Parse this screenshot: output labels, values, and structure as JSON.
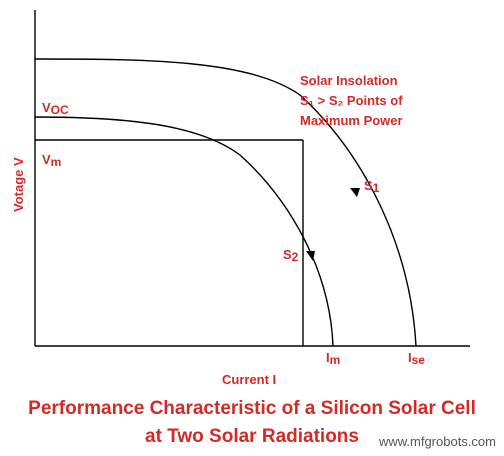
{
  "axes": {
    "y_label": "Votage V",
    "x_label": "Current I"
  },
  "markers": {
    "voc": {
      "main": "V",
      "sub": "OC"
    },
    "vm": {
      "main": "V",
      "sub": "m"
    },
    "im": {
      "main": "I",
      "sub": "m"
    },
    "ise": {
      "main": "I",
      "sub": "se"
    }
  },
  "curves": {
    "s1": {
      "main": "S",
      "sub": "1"
    },
    "s2": {
      "main": "S",
      "sub": "2"
    }
  },
  "annotation": {
    "line1": "Solar Insolation",
    "line2": "S₁ > S₂ Points of",
    "line3": "Maximum Power"
  },
  "title": {
    "line1": "Performance Characteristic of a Silicon Solar Cell",
    "line2": "at Two Solar Radiations"
  },
  "watermark": "www.mfgrobots.com",
  "colors": {
    "accent": "#d42a26",
    "lines": "#000000"
  }
}
